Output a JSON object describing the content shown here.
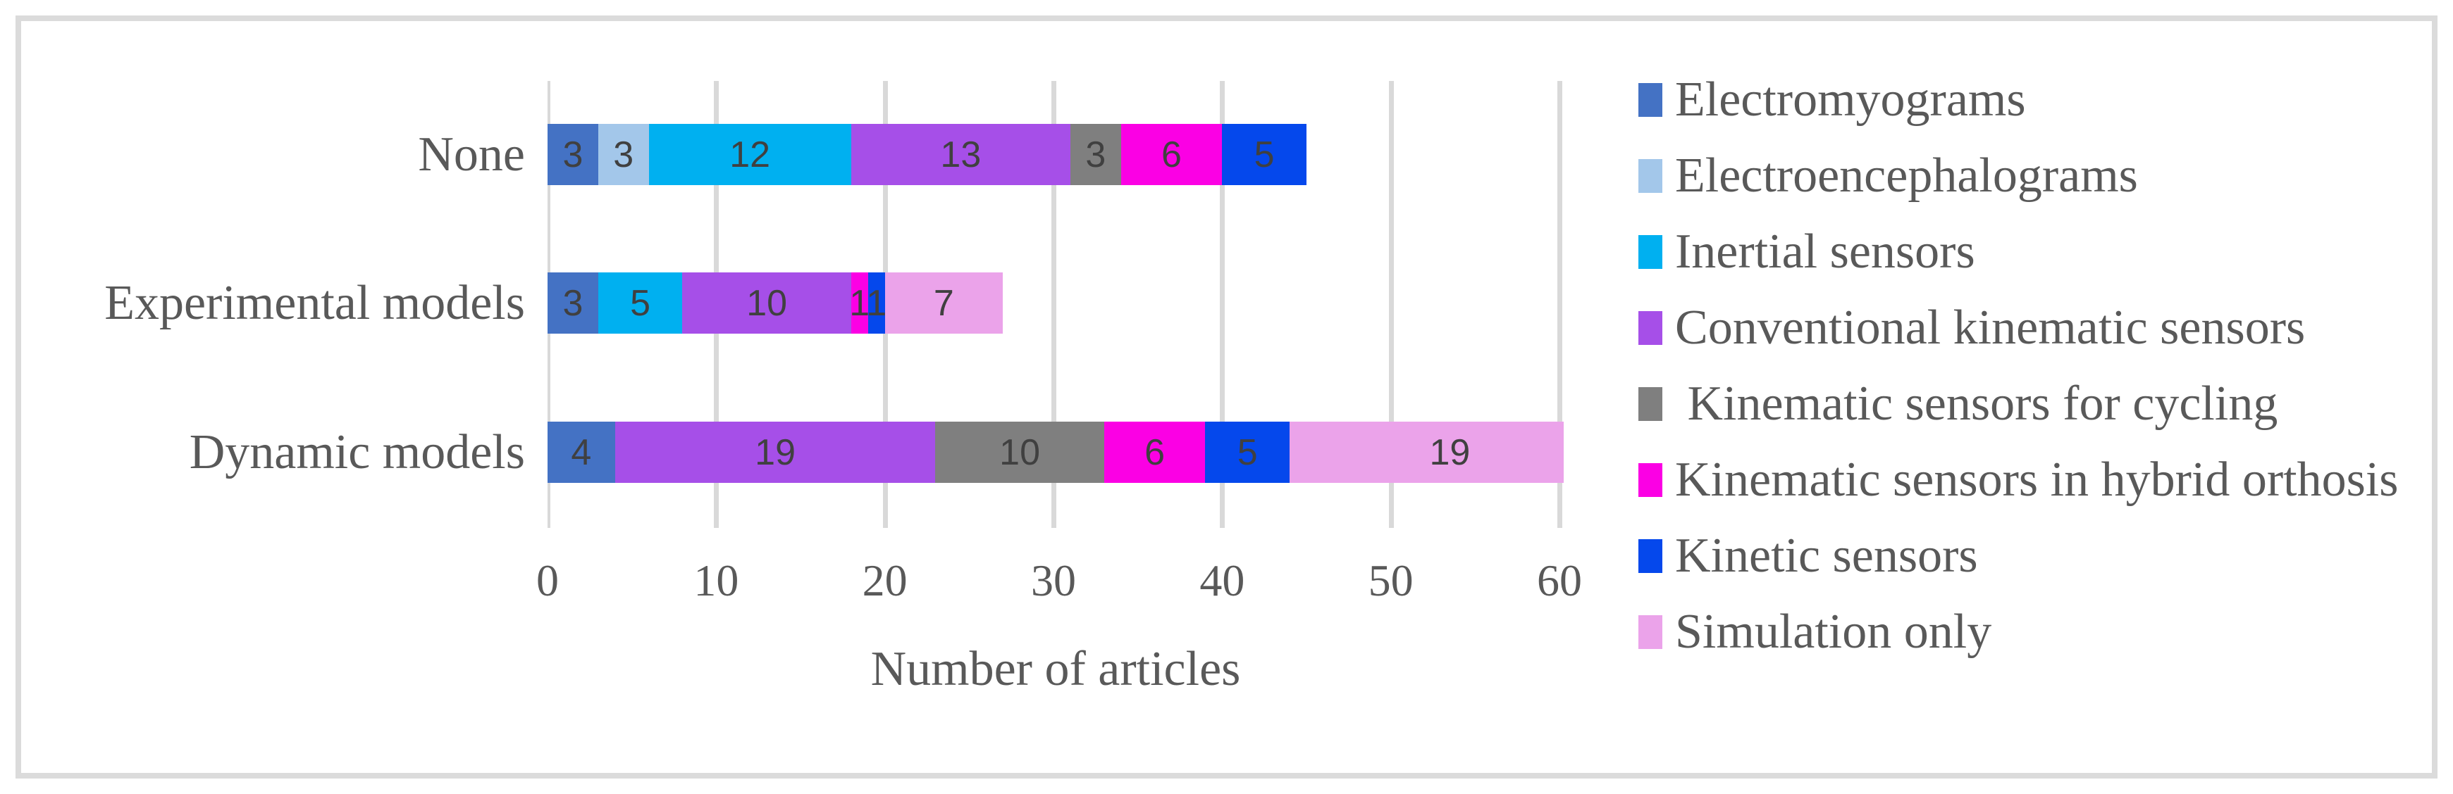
{
  "chart_data": {
    "type": "bar",
    "orientation": "horizontal",
    "stacked": true,
    "xlabel": "Number of articles",
    "categories": [
      "None",
      "Experimental models",
      "Dynamic models"
    ],
    "category_totals": [
      45,
      27,
      63
    ],
    "x_ticks": [
      0,
      10,
      20,
      30,
      40,
      50,
      60
    ],
    "xlim": [
      0,
      60
    ],
    "axis_clips_last_bar": true,
    "grid": true,
    "legend_position": "right",
    "series": [
      {
        "name": "Electromyograms",
        "color": "#4472c4",
        "values": [
          3,
          3,
          4
        ]
      },
      {
        "name": "Electroencephalograms",
        "color": "#a3c7ea",
        "values": [
          3,
          0,
          0
        ]
      },
      {
        "name": "Inertial sensors",
        "color": "#00b0f0",
        "values": [
          12,
          5,
          0
        ]
      },
      {
        "name": "Conventional kinematic sensors",
        "color": "#a64fe8",
        "values": [
          13,
          10,
          19
        ]
      },
      {
        "name": " Kinematic sensors for cycling",
        "color": "#7f7f7f",
        "values": [
          3,
          0,
          10
        ]
      },
      {
        "name": "Kinematic sensors in hybrid orthosis",
        "color": "#fb00e4",
        "values": [
          6,
          1,
          6
        ]
      },
      {
        "name": "Kinetic sensors",
        "color": "#0548ec",
        "values": [
          5,
          1,
          5
        ]
      },
      {
        "name": "Simulation only",
        "color": "#eba3ea",
        "values": [
          0,
          7,
          19
        ]
      }
    ],
    "colors": {
      "gridline": "#d9d9d9",
      "axis_text": "#595959",
      "data_label": "#404040",
      "frame_border": "#dbdbdb"
    }
  }
}
